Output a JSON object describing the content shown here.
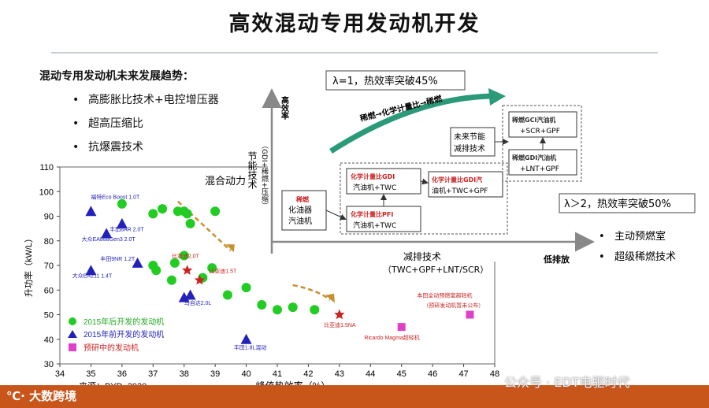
{
  "title": "高效混动专用发动机开发",
  "trends": {
    "heading": "混动专用发动机未来发展趋势：",
    "items": [
      "高膨胀比技术+电控增压器",
      "超高压缩比",
      "抗爆震技术"
    ]
  },
  "chart_data": {
    "type": "scatter",
    "xlabel": "峰值热效率（%）",
    "ylabel": "升功率（kW/L）",
    "xlim": [
      34,
      48
    ],
    "ylim": [
      30,
      110
    ],
    "xticks": [
      34,
      35,
      36,
      37,
      38,
      39,
      40,
      41,
      42,
      43,
      44,
      45,
      46,
      47,
      48
    ],
    "yticks": [
      30,
      40,
      50,
      60,
      70,
      80,
      90,
      100,
      110
    ],
    "overlay_label": "混合动力",
    "source": "来源：BYD, 2020",
    "legend": [
      "2015年后开发的发动机",
      "2015年前开发的发动机",
      "预研中的发动机"
    ],
    "series": [
      {
        "name": "2015年后开发的发动机",
        "marker": "circle",
        "color": "#22cc22",
        "points": [
          [
            36.0,
            95
          ],
          [
            37.0,
            91
          ],
          [
            37.3,
            93
          ],
          [
            37.8,
            92
          ],
          [
            38.0,
            92
          ],
          [
            38.2,
            87
          ],
          [
            38.1,
            91
          ],
          [
            39.0,
            92
          ],
          [
            37.0,
            70
          ],
          [
            37.1,
            68
          ],
          [
            37.7,
            71
          ],
          [
            38.0,
            74
          ],
          [
            38.6,
            65
          ],
          [
            38.9,
            69
          ],
          [
            37.6,
            64
          ],
          [
            39.4,
            58
          ],
          [
            40.0,
            61
          ],
          [
            40.5,
            54
          ],
          [
            41.0,
            52
          ],
          [
            41.5,
            53
          ],
          [
            42.2,
            52
          ]
        ]
      },
      {
        "name": "2015年前开发的发动机",
        "marker": "triangle",
        "color": "#2222bb",
        "points": [
          [
            35.0,
            92
          ],
          [
            35.5,
            83
          ],
          [
            36.0,
            87
          ],
          [
            36.5,
            71
          ],
          [
            35.0,
            68
          ],
          [
            38.0,
            57
          ],
          [
            38.2,
            58
          ],
          [
            40.0,
            40
          ]
        ]
      },
      {
        "name": "预研中的发动机",
        "marker": "square",
        "color": "#e040c8",
        "points": [
          [
            45.0,
            45
          ],
          [
            47.2,
            50
          ]
        ]
      },
      {
        "name": "",
        "marker": "star",
        "color": "#cc2222",
        "points": [
          [
            38.1,
            68
          ],
          [
            38.5,
            64
          ],
          [
            43.0,
            50
          ]
        ]
      }
    ],
    "point_labels": [
      {
        "text": "福特Eco Boost 1.0T",
        "x": 35.0,
        "y": 97,
        "color": "#2222bb"
      },
      {
        "text": "大众EA888Gen3 2.0T",
        "x": 34.7,
        "y": 80,
        "color": "#2222bb"
      },
      {
        "text": "丰田8AR 2.0T",
        "x": 35.6,
        "y": 84,
        "color": "#2222bb"
      },
      {
        "text": "丰田9NR 1.2T",
        "x": 35.3,
        "y": 72,
        "color": "#2222bb"
      },
      {
        "text": "大众EA211 1.4T",
        "x": 34.4,
        "y": 65,
        "color": "#2222bb"
      },
      {
        "text": "马自达2.0L",
        "x": 38.0,
        "y": 54,
        "color": "#2222bb"
      },
      {
        "text": "丰田1.8L混动",
        "x": 39.6,
        "y": 36,
        "color": "#2222bb"
      },
      {
        "text": "比亚迪2.0T",
        "x": 37.6,
        "y": 73,
        "color": "#cc2222"
      },
      {
        "text": "比亚迪1.5T",
        "x": 38.8,
        "y": 67,
        "color": "#cc2222"
      },
      {
        "text": "比亚迪1.5NA",
        "x": 42.5,
        "y": 45,
        "color": "#cc2222"
      },
      {
        "text": "Ricardo Magma超轻机",
        "x": 43.8,
        "y": 40,
        "color": "#cc2222"
      },
      {
        "text": "本田全动预燃室超轻机",
        "x": 45.5,
        "y": 57,
        "color": "#cc2222"
      },
      {
        "text": "（预研发动机暂未公布）",
        "x": 45.7,
        "y": 53,
        "color": "#cc2222"
      }
    ]
  },
  "diagram": {
    "y_axis_top": "高效率",
    "y_axis_label": "节能技术",
    "y_axis_sub": "（GDI+稀燃+压缩）",
    "x_axis_label": "减排技术",
    "x_axis_sub": "（TWC+GPF+LNT/SCR）",
    "x_axis_end": "低排放",
    "callout_1": "λ=1，热效率突破45%",
    "callout_2": "λ＞2，热效率突破50%",
    "arrow_text": "稀燃→化学计量比→稀燃",
    "boxes": {
      "carb_1": "稀燃",
      "carb_2": "化油器",
      "carb_3": "汽油机",
      "pfi_1": "化学计量比PFI",
      "pfi_2": "汽油机+TWC",
      "gdi_1": "化学计量比GDI",
      "gdi_2": "汽油机+TWC",
      "gdi_gpf_1": "化学计量比GDI汽",
      "gdi_gpf_2": "油机+TWC+GPF",
      "future_1": "未来节能",
      "future_2": "减排技术",
      "lnt_1": "稀燃GDI汽油机",
      "lnt_2": "+LNT+GPF",
      "gci_1": "稀燃GCI汽油机",
      "gci_2": "+SCR+GPF"
    },
    "bullets": [
      "主动预燃室",
      "超级稀燃技术"
    ]
  },
  "footer": {
    "logo": "大数跨境",
    "watermark": "公众号 · EDT电驱时代"
  }
}
